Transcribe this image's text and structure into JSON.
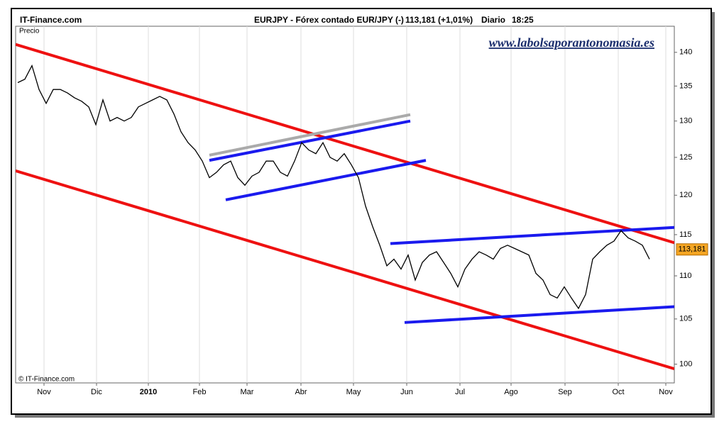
{
  "chart_data": {
    "type": "line",
    "site": "IT-Finance.com",
    "title": "EURJPY - Fórex contado EUR/JPY (-)",
    "quote": "113,181 (+1,01%)",
    "period": "Diario",
    "time": "18:25",
    "y_label": "Precio",
    "watermark": "www.labolsaporantonomasia.es",
    "copyright": "© IT-Finance.com",
    "last_price": {
      "value": 113.181,
      "label": "113,181"
    },
    "log_scale": true,
    "grid": "vertical",
    "color": "#000000",
    "values": [
      135.5,
      136,
      138,
      134.5,
      132.5,
      134.5,
      134.5,
      134,
      133.3,
      132.8,
      132,
      129.5,
      133,
      130,
      130.5,
      130,
      130.5,
      132,
      132.5,
      133,
      133.5,
      133,
      131,
      128.5,
      127,
      126,
      124.5,
      122.3,
      123,
      124,
      124.5,
      122.3,
      121.3,
      122.5,
      123,
      124.5,
      124.5,
      123,
      122.5,
      124.5,
      127,
      126,
      125.5,
      127,
      125,
      124.5,
      125.5,
      124,
      122.3,
      118.6,
      116,
      113.7,
      111.2,
      112,
      110.8,
      112.5,
      109.5,
      111.6,
      112.5,
      112.9,
      111.6,
      110.3,
      108.7,
      110.8,
      112,
      112.9,
      112.5,
      112,
      113.3,
      113.7,
      113.3,
      112.9,
      112.5,
      110.3,
      109.5,
      107.8,
      107.4,
      108.7,
      107.4,
      106.2,
      107.8,
      112,
      112.9,
      113.7,
      114.2,
      115.5,
      114.6,
      114.2,
      113.7,
      112
    ],
    "xlim": [
      -0.3,
      92.5
    ],
    "xticks": [
      {
        "value": 3.7,
        "label": "Nov"
      },
      {
        "value": 11.1,
        "label": "Dic"
      },
      {
        "value": 18.4,
        "label": "2010",
        "bold": true
      },
      {
        "value": 25.6,
        "label": "Feb"
      },
      {
        "value": 32.3,
        "label": "Mar"
      },
      {
        "value": 39.9,
        "label": "Abr"
      },
      {
        "value": 47.3,
        "label": "May"
      },
      {
        "value": 54.8,
        "label": "Jun"
      },
      {
        "value": 62.3,
        "label": "Jul"
      },
      {
        "value": 69.5,
        "label": "Ago"
      },
      {
        "value": 77.1,
        "label": "Sep"
      },
      {
        "value": 84.6,
        "label": "Oct"
      },
      {
        "value": 91.3,
        "label": "Nov"
      }
    ],
    "ylim": [
      98,
      144
    ],
    "yticks": [
      100,
      105,
      110,
      115,
      120,
      125,
      130,
      135,
      140
    ],
    "trendlines": [
      {
        "color": "#ee1111",
        "x": [
          -0.3,
          92.5
        ],
        "y": [
          141.2,
          114.0
        ]
      },
      {
        "color": "#ee1111",
        "x": [
          -0.3,
          92.5
        ],
        "y": [
          123.2,
          99.5
        ]
      },
      {
        "color": "#aaaaaa",
        "x": [
          27,
          55.3
        ],
        "y": [
          125.3,
          130.9
        ]
      },
      {
        "color": "#1a1aee",
        "x": [
          27,
          55.3
        ],
        "y": [
          124.6,
          130.0
        ]
      },
      {
        "color": "#1a1aee",
        "x": [
          29.3,
          57.5
        ],
        "y": [
          119.4,
          124.6
        ]
      },
      {
        "color": "#1a1aee",
        "x": [
          52.5,
          92.5
        ],
        "y": [
          113.9,
          115.9
        ]
      },
      {
        "color": "#1a1aee",
        "x": [
          54.5,
          92.5
        ],
        "y": [
          104.6,
          106.4
        ]
      }
    ]
  }
}
